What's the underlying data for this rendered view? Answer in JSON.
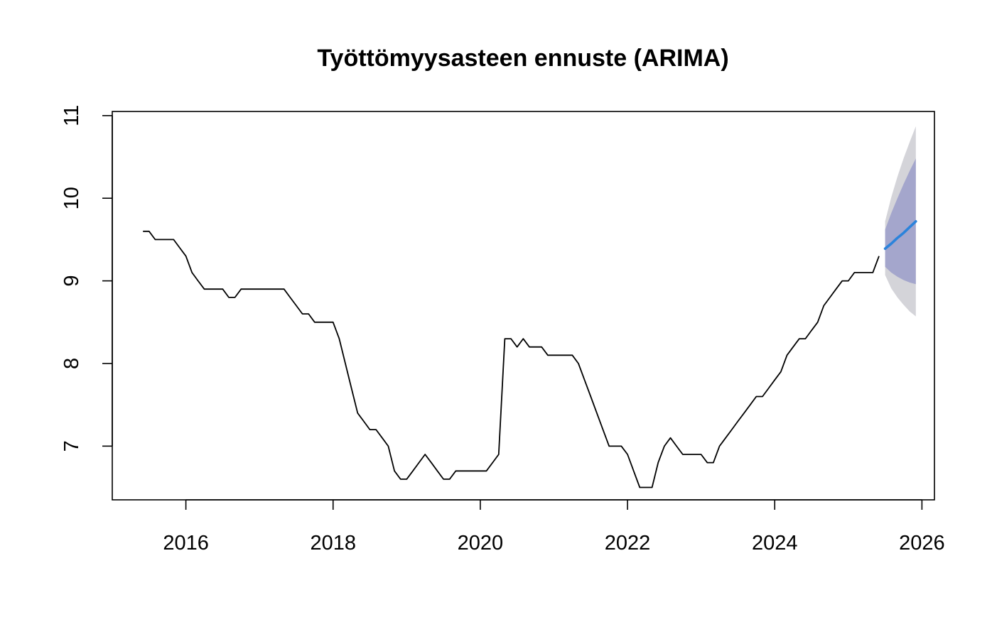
{
  "chart_data": {
    "type": "line",
    "title": "Työttömyysasteen ennuste (ARIMA)",
    "xlabel": "",
    "ylabel": "",
    "xlim": [
      2015.0,
      2026.17
    ],
    "ylim": [
      6.35,
      11.05
    ],
    "x_ticks": [
      2016,
      2018,
      2020,
      2022,
      2024,
      2026
    ],
    "x_tick_labels": [
      "2016",
      "2018",
      "2020",
      "2022",
      "2024",
      "2026"
    ],
    "y_ticks": [
      7,
      8,
      9,
      10,
      11
    ],
    "y_tick_labels": [
      "7",
      "8",
      "9",
      "10",
      "11"
    ],
    "grid": false,
    "colors": {
      "observed": "#000000",
      "forecast": "#2B83DB",
      "band80": "#A4A6CC",
      "band95": "#D4D4D9"
    },
    "observed": {
      "start": "2015-06",
      "frequency": "monthly",
      "values": [
        9.6,
        9.6,
        9.5,
        9.5,
        9.5,
        9.5,
        9.4,
        9.3,
        9.1,
        9.0,
        8.9,
        8.9,
        8.9,
        8.9,
        8.8,
        8.8,
        8.9,
        8.9,
        8.9,
        8.9,
        8.9,
        8.9,
        8.9,
        8.9,
        8.8,
        8.7,
        8.6,
        8.6,
        8.5,
        8.5,
        8.5,
        8.5,
        8.3,
        8.0,
        7.7,
        7.4,
        7.3,
        7.2,
        7.2,
        7.1,
        7.0,
        6.7,
        6.6,
        6.6,
        6.7,
        6.8,
        6.9,
        6.8,
        6.7,
        6.6,
        6.6,
        6.7,
        6.7,
        6.7,
        6.7,
        6.7,
        6.7,
        6.8,
        6.9,
        8.3,
        8.3,
        8.2,
        8.3,
        8.2,
        8.2,
        8.2,
        8.1,
        8.1,
        8.1,
        8.1,
        8.1,
        8.0,
        7.8,
        7.6,
        7.4,
        7.2,
        7.0,
        7.0,
        7.0,
        6.9,
        6.7,
        6.5,
        6.5,
        6.5,
        6.8,
        7.0,
        7.1,
        7.0,
        6.9,
        6.9,
        6.9,
        6.9,
        6.8,
        6.8,
        7.0,
        7.1,
        7.2,
        7.3,
        7.4,
        7.5,
        7.6,
        7.6,
        7.7,
        7.8,
        7.9,
        8.1,
        8.2,
        8.3,
        8.3,
        8.4,
        8.5,
        8.7,
        8.8,
        8.9,
        9.0,
        9.0,
        9.1,
        9.1,
        9.1,
        9.1,
        9.3
      ]
    },
    "forecast": {
      "start": "2025-07",
      "frequency": "monthly",
      "mean": [
        9.39,
        9.45,
        9.52,
        9.58,
        9.65,
        9.72
      ],
      "lo80": [
        9.17,
        9.1,
        9.05,
        9.01,
        8.98,
        8.96
      ],
      "hi80": [
        9.62,
        9.82,
        10.0,
        10.17,
        10.33,
        10.48
      ],
      "lo95": [
        9.07,
        8.91,
        8.8,
        8.71,
        8.63,
        8.57
      ],
      "hi95": [
        9.72,
        10.01,
        10.26,
        10.48,
        10.68,
        10.87
      ]
    }
  }
}
